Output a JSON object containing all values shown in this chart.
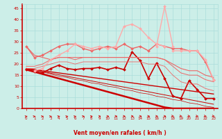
{
  "x": [
    0,
    1,
    2,
    3,
    4,
    5,
    6,
    7,
    8,
    9,
    10,
    11,
    12,
    13,
    14,
    15,
    16,
    17,
    18,
    19,
    20,
    21,
    22,
    23
  ],
  "bg_color": "#cceee8",
  "grid_color": "#aaddda",
  "red_dark": "#cc0000",
  "red_mid": "#ee6666",
  "red_light": "#ffaaaa",
  "xlabel": "Vent moyen/en rafales ( km/h )",
  "yticks": [
    0,
    5,
    10,
    15,
    20,
    25,
    30,
    35,
    40,
    45
  ],
  "ylim": [
    0,
    47
  ],
  "xlim": [
    -0.5,
    23.5
  ],
  "series": [
    {
      "y": [
        17.5,
        16.5,
        15.5,
        14.5,
        13.5,
        12.5,
        11.5,
        10.5,
        9.5,
        8.5,
        7.5,
        6.5,
        5.5,
        4.5,
        3.5,
        2.5,
        1.5,
        0.5,
        0,
        0,
        0,
        0,
        0,
        0
      ],
      "color": "#cc0000",
      "lw": 1.8,
      "marker": null
    },
    {
      "y": [
        18,
        17.5,
        17,
        16.5,
        16,
        15.5,
        15,
        14.5,
        14,
        13.5,
        13,
        12.5,
        12,
        11.5,
        11,
        10.5,
        10,
        9.5,
        9,
        8.5,
        8,
        7.5,
        7,
        6.5
      ],
      "color": "#cc0000",
      "lw": 1.0,
      "marker": null
    },
    {
      "y": [
        18,
        17.3,
        16.6,
        15.9,
        15.2,
        14.5,
        13.8,
        13.1,
        12.4,
        11.7,
        11,
        10.3,
        9.6,
        8.9,
        8.2,
        7.5,
        6.8,
        6.1,
        5.4,
        4.7,
        4,
        3.3,
        2.6,
        1.9
      ],
      "color": "#cc0000",
      "lw": 0.7,
      "marker": null
    },
    {
      "y": [
        18,
        17,
        16.5,
        15.5,
        14.5,
        14,
        13,
        12.5,
        11.5,
        11,
        10,
        9.5,
        8.5,
        8,
        7,
        6.5,
        5.5,
        5,
        4,
        3.5,
        2.5,
        2,
        1,
        0.5
      ],
      "color": "#cc0000",
      "lw": 0.5,
      "marker": null
    },
    {
      "y": [
        17.5,
        16.5,
        16,
        18,
        19.5,
        18,
        17.5,
        18,
        18,
        18.5,
        17.5,
        18.5,
        17.5,
        25.5,
        21.5,
        13.5,
        20.5,
        13.5,
        5.5,
        4.5,
        12.5,
        8.5,
        4.5,
        4.5
      ],
      "color": "#cc0000",
      "lw": 1.2,
      "marker": "D",
      "ms": 2.0
    },
    {
      "y": [
        28,
        23,
        24,
        26,
        28,
        29,
        29,
        27,
        26,
        27,
        28,
        27,
        29,
        27,
        28,
        26,
        29,
        28,
        27,
        27,
        26,
        26,
        21,
        13
      ],
      "color": "#ee6666",
      "lw": 1.0,
      "marker": "D",
      "ms": 2.0
    },
    {
      "y": [
        28,
        24,
        23,
        22,
        23,
        23,
        23,
        23,
        23,
        23,
        23,
        23,
        23,
        23,
        23,
        23,
        23,
        22,
        20,
        18,
        17,
        17,
        15,
        14
      ],
      "color": "#ee6666",
      "lw": 0.8,
      "marker": null
    },
    {
      "y": [
        19,
        19,
        20,
        22,
        23,
        23,
        22,
        23,
        23,
        23,
        23,
        23,
        23,
        23,
        23,
        23,
        23,
        22,
        19,
        16,
        15,
        15,
        13,
        12
      ],
      "color": "#ee6666",
      "lw": 0.7,
      "marker": null
    },
    {
      "y": [
        18,
        18,
        19,
        20,
        21,
        21,
        20,
        21,
        21,
        21,
        21,
        21,
        21,
        21,
        21,
        20,
        20,
        19,
        15,
        12,
        11,
        11,
        9,
        8
      ],
      "color": "#ee6666",
      "lw": 0.6,
      "marker": null
    },
    {
      "y": [
        null,
        17,
        18,
        22,
        24,
        26,
        29,
        28,
        27,
        28,
        27,
        28,
        37,
        38,
        36,
        32,
        29,
        28,
        null,
        null,
        null,
        null,
        null,
        null
      ],
      "color": "#ffaaaa",
      "lw": 1.0,
      "marker": "D",
      "ms": 2.0
    },
    {
      "y": [
        null,
        null,
        null,
        null,
        null,
        null,
        null,
        null,
        null,
        null,
        null,
        null,
        null,
        null,
        null,
        null,
        28,
        46,
        28,
        null,
        null,
        null,
        null,
        null
      ],
      "color": "#ffaaaa",
      "lw": 1.0,
      "marker": "D",
      "ms": 2.0
    },
    {
      "y": [
        null,
        null,
        null,
        null,
        null,
        null,
        null,
        null,
        null,
        null,
        null,
        null,
        null,
        null,
        null,
        null,
        null,
        null,
        26,
        26,
        26,
        26,
        22,
        13
      ],
      "color": "#ffaaaa",
      "lw": 1.0,
      "marker": "D",
      "ms": 2.0
    }
  ],
  "arrows": {
    "angles_deg": [
      45,
      45,
      45,
      45,
      45,
      45,
      45,
      30,
      30,
      15,
      15,
      0,
      0,
      0,
      0,
      0,
      0,
      0,
      315,
      315,
      315,
      315,
      315,
      315
    ],
    "color": "#cc0000"
  }
}
